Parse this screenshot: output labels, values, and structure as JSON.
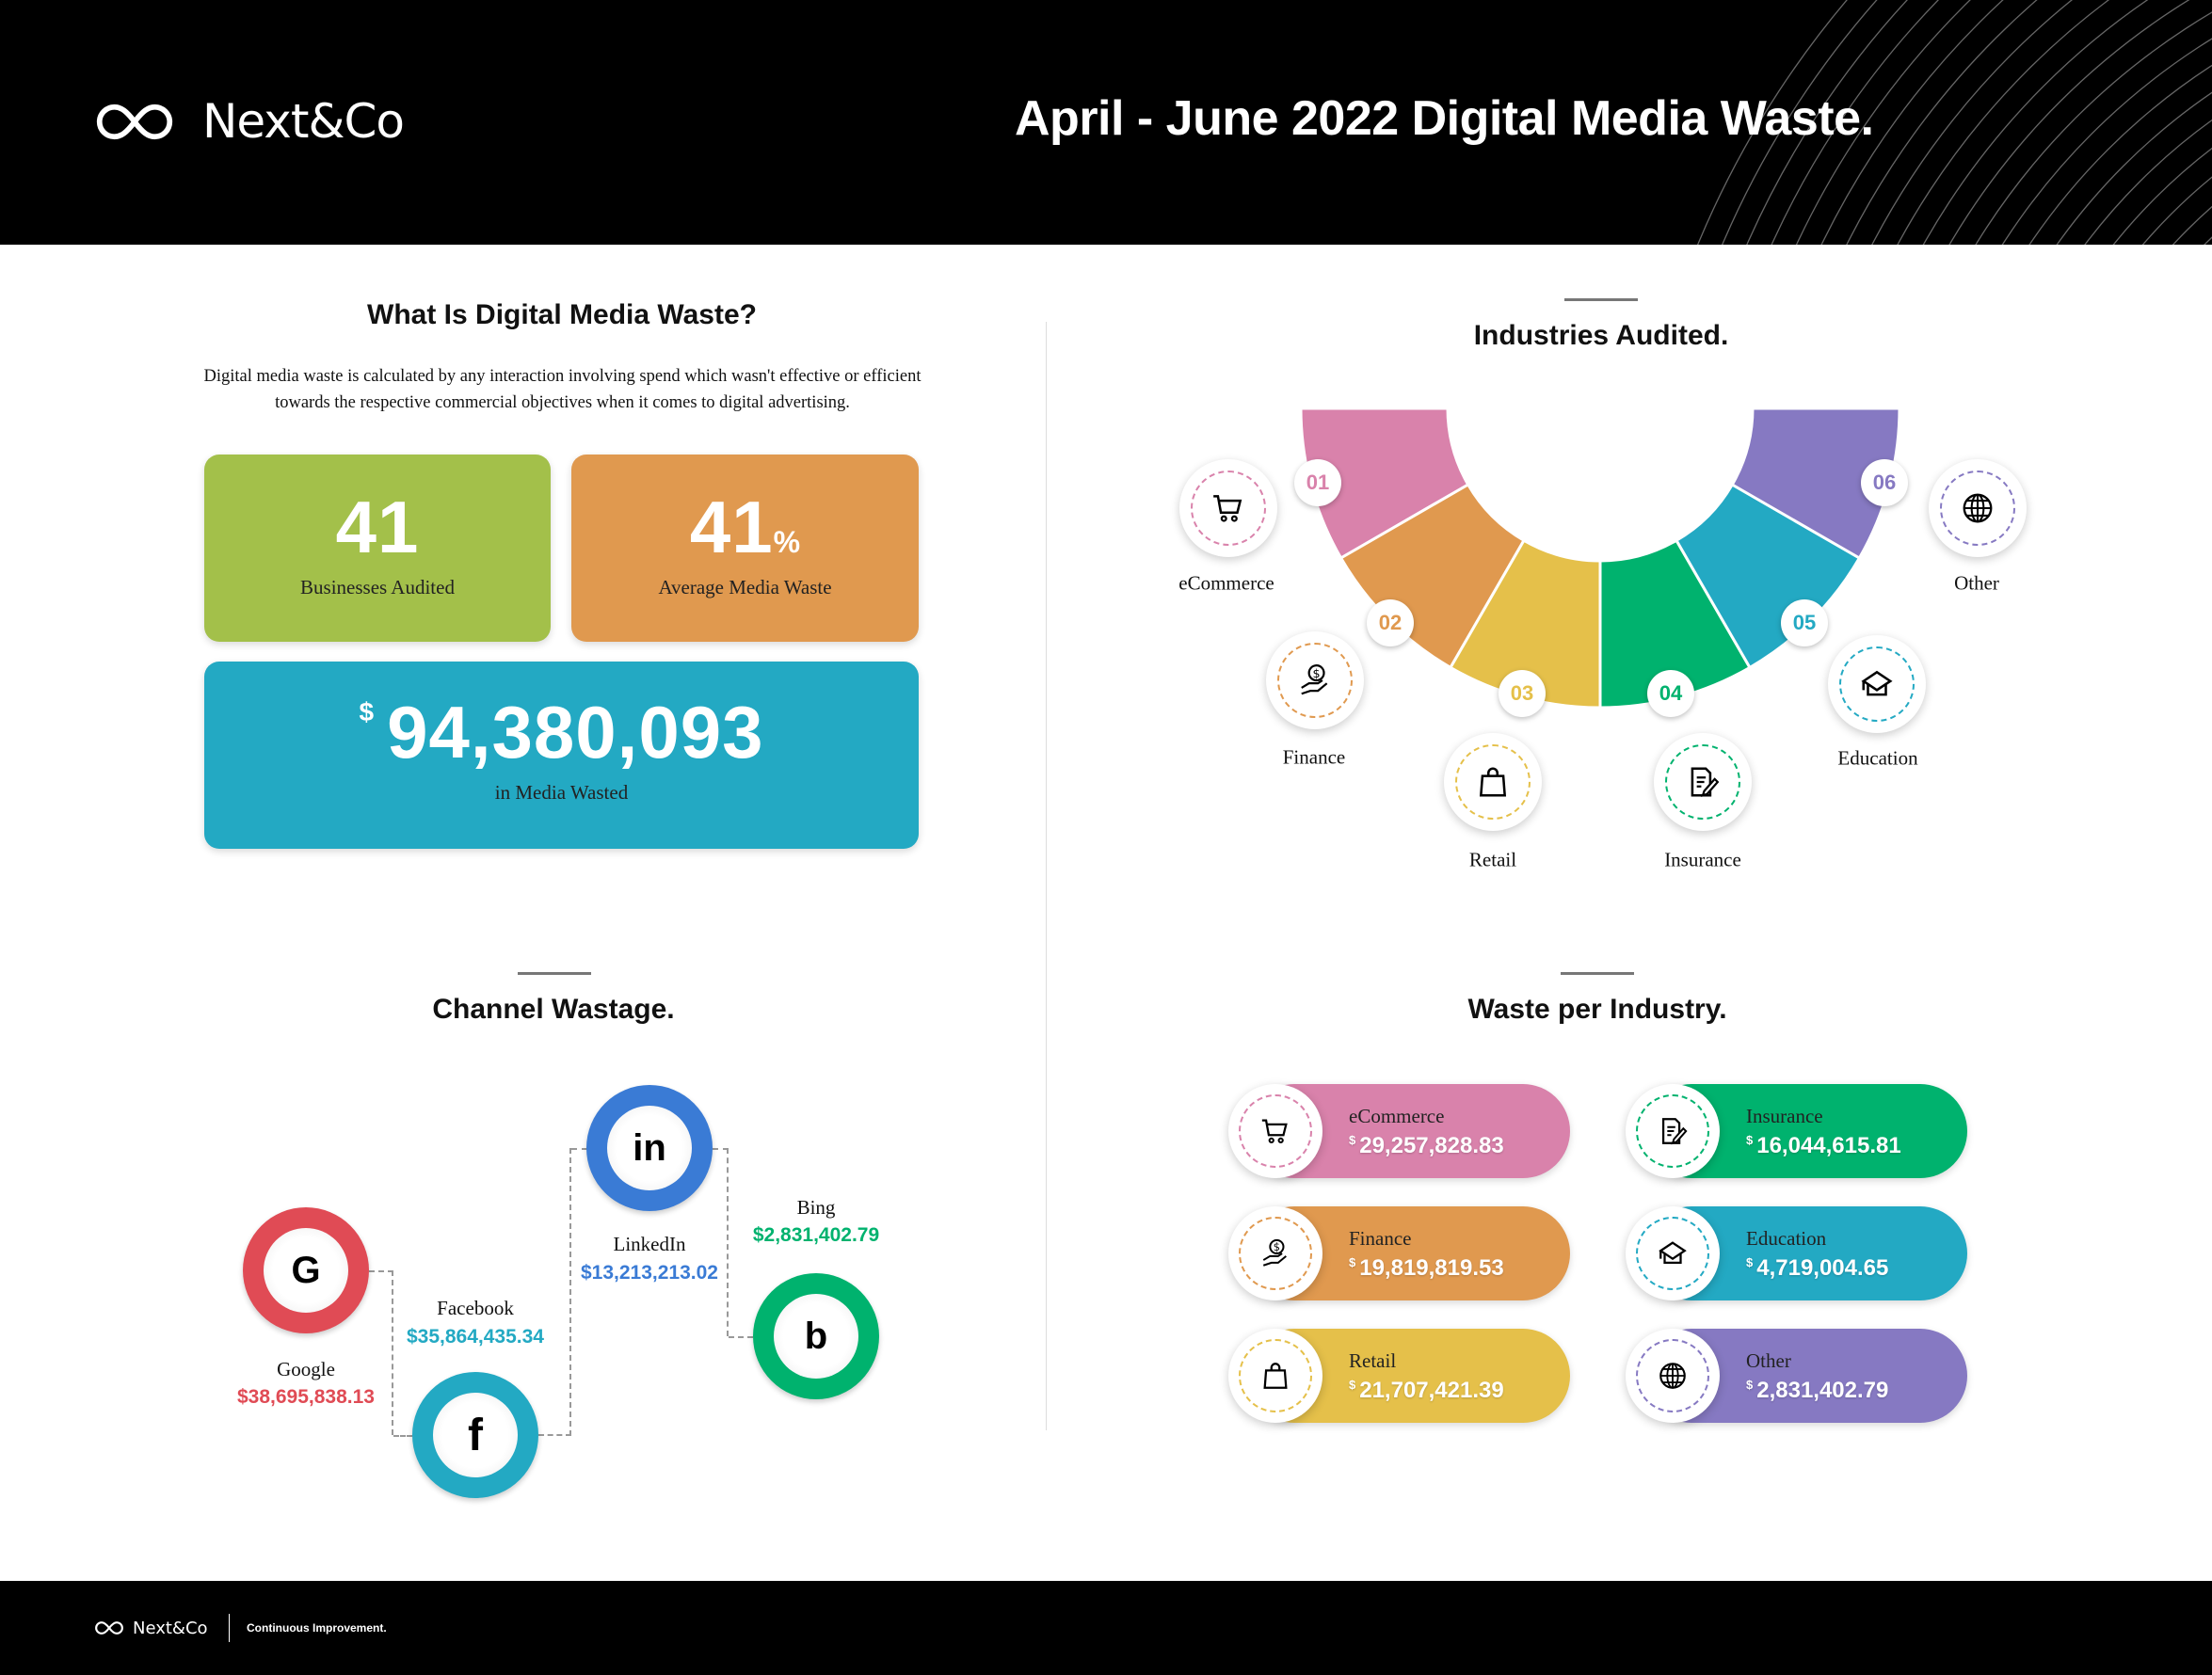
{
  "header": {
    "brand": "Next&Co",
    "title": "April - June 2022 Digital Media Waste."
  },
  "intro": {
    "title": "What Is Digital Media Waste?",
    "text": "Digital media waste is calculated by any interaction involving spend which wasn't effective or efficient towards the respective commercial objectives when it comes to digital advertising.",
    "stats": [
      {
        "value": "41",
        "unit": "",
        "label": "Businesses Audited",
        "color": "#a3c04a"
      },
      {
        "value": "41",
        "unit": "%",
        "label": "Average Media Waste",
        "color": "#e0994f"
      },
      {
        "value": "94,380,093",
        "unit": "$",
        "label": "in Media Wasted",
        "color": "#23a9c3"
      }
    ]
  },
  "channels": {
    "title": "Channel Wastage.",
    "items": [
      {
        "name": "Google",
        "value": "$38,695,838.13",
        "color": "#e04b55",
        "icon": "google-icon",
        "glyph": "G"
      },
      {
        "name": "Facebook",
        "value": "$35,864,435.34",
        "color": "#23a9c3",
        "icon": "facebook-icon",
        "glyph": "f"
      },
      {
        "name": "LinkedIn",
        "value": "$13,213,213.02",
        "color": "#3a7bd5",
        "icon": "linkedin-icon",
        "glyph": "in"
      },
      {
        "name": "Bing",
        "value": "$2,831,402.79",
        "color": "#00b26e",
        "icon": "bing-icon",
        "glyph": "b"
      }
    ]
  },
  "industries": {
    "title": "Industries Audited.",
    "items": [
      {
        "num": "01",
        "name": "eCommerce",
        "color": "#d982ab",
        "icon": "cart"
      },
      {
        "num": "02",
        "name": "Finance",
        "color": "#e0994f",
        "icon": "hand-dollar"
      },
      {
        "num": "03",
        "name": "Retail",
        "color": "#e5c04a",
        "icon": "bag"
      },
      {
        "num": "04",
        "name": "Insurance",
        "color": "#00b26e",
        "icon": "document"
      },
      {
        "num": "05",
        "name": "Education",
        "color": "#23a9c3",
        "icon": "cap"
      },
      {
        "num": "06",
        "name": "Other",
        "color": "#8679c2",
        "icon": "globe"
      }
    ]
  },
  "waste": {
    "title": "Waste per Industry.",
    "currency": "$",
    "items": [
      {
        "name": "eCommerce",
        "value": "29,257,828.83",
        "color": "#d982ab",
        "icon": "cart"
      },
      {
        "name": "Finance",
        "value": "19,819,819.53",
        "color": "#e0994f",
        "icon": "hand-dollar"
      },
      {
        "name": "Retail",
        "value": "21,707,421.39",
        "color": "#e5c04a",
        "icon": "bag"
      },
      {
        "name": "Insurance",
        "value": "16,044,615.81",
        "color": "#00b26e",
        "icon": "document"
      },
      {
        "name": "Education",
        "value": "4,719,004.65",
        "color": "#23a9c3",
        "icon": "cap"
      },
      {
        "name": "Other",
        "value": "2,831,402.79",
        "color": "#8679c2",
        "icon": "globe"
      }
    ]
  },
  "footer": {
    "brand": "Next&Co",
    "tagline": "Continuous Improvement."
  }
}
